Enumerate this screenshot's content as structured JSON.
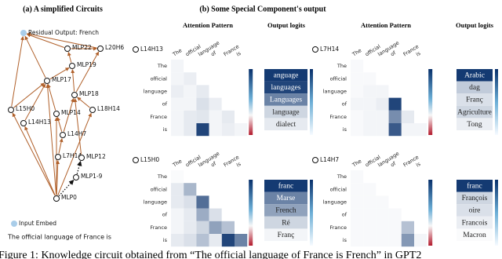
{
  "left": {
    "title": "(a) A simplified Circuits",
    "nodes": [
      {
        "label": "Residual Output: French"
      },
      {
        "label": "L20H6"
      },
      {
        "label": "MLP22"
      },
      {
        "label": "MLP19"
      },
      {
        "label": "MLP17"
      },
      {
        "label": "MLP18"
      },
      {
        "label": "L18H14"
      },
      {
        "label": "L15H0"
      },
      {
        "label": "L14H13"
      },
      {
        "label": "MLP14"
      },
      {
        "label": "L14H7"
      },
      {
        "label": "L7H14"
      },
      {
        "label": "MLP12"
      },
      {
        "label": "MLP1-9"
      },
      {
        "label": "MLP0"
      },
      {
        "label": "Input Embed"
      }
    ],
    "sentence": "The official language of France is"
  },
  "right": {
    "title": "(b) Some Special Component's output",
    "attention_header": "Attention Pattern",
    "logits_header": "Output logits",
    "tokens": [
      "The",
      "official",
      "language",
      "of",
      "France",
      "is"
    ],
    "colors": {
      "high": "#08306b",
      "low": "#ffffff",
      "negative": "#b2182b"
    },
    "panels": [
      {
        "name": "L14H13",
        "attention": [
          [
            0.05,
            0,
            0,
            0,
            0,
            0
          ],
          [
            0.05,
            0.08,
            0,
            0,
            0,
            0
          ],
          [
            0.08,
            0.05,
            0.1,
            0,
            0,
            0
          ],
          [
            0.05,
            0.05,
            0.15,
            0.08,
            0,
            0
          ],
          [
            0.05,
            0.1,
            0.12,
            0.05,
            0.1,
            0
          ],
          [
            0.05,
            0.1,
            0.9,
            0.05,
            0.08,
            0.05
          ]
        ],
        "logit_tokens": [
          "anguage",
          "languages",
          "Languages",
          "language",
          "dialect"
        ],
        "logit_values": [
          0.95,
          0.9,
          0.6,
          0.2,
          0.1
        ]
      },
      {
        "name": "L7H14",
        "attention": [
          [
            0.03,
            0,
            0,
            0,
            0,
            0
          ],
          [
            0.03,
            0.03,
            0,
            0,
            0,
            0
          ],
          [
            0.03,
            0.05,
            0.05,
            0,
            0,
            0
          ],
          [
            0.05,
            0.05,
            0.08,
            0.9,
            0,
            0
          ],
          [
            0.03,
            0.05,
            0.05,
            0.55,
            0.1,
            0
          ],
          [
            0.03,
            0.05,
            0.05,
            0.8,
            0.05,
            0.05
          ]
        ],
        "logit_tokens": [
          "Arabic",
          "dag",
          "Franç",
          "Agriculture",
          "Tong"
        ],
        "logit_values": [
          0.95,
          0.25,
          0.15,
          0.2,
          0.08
        ]
      },
      {
        "name": "L15H0",
        "attention": [
          [
            0.02,
            0,
            0,
            0,
            0,
            0
          ],
          [
            0.1,
            0.35,
            0,
            0,
            0,
            0
          ],
          [
            0.1,
            0.15,
            0.7,
            0,
            0,
            0
          ],
          [
            0.05,
            0.1,
            0.4,
            0.15,
            0,
            0
          ],
          [
            0.05,
            0.1,
            0.2,
            0.45,
            0.3,
            0
          ],
          [
            0.1,
            0.15,
            0.3,
            0.1,
            0.9,
            0.6
          ]
        ],
        "logit_tokens": [
          "franc",
          "Marse",
          "French",
          "Ré",
          "Franç"
        ],
        "logit_values": [
          0.95,
          0.6,
          0.45,
          0.2,
          0.05
        ]
      },
      {
        "name": "L14H7",
        "attention": [
          [
            0.03,
            0,
            0,
            0,
            0,
            0
          ],
          [
            0.03,
            0.03,
            0,
            0,
            0,
            0
          ],
          [
            0.03,
            0.03,
            0.03,
            0,
            0,
            0
          ],
          [
            0.03,
            0.03,
            0.03,
            0.03,
            0,
            0
          ],
          [
            0.03,
            0.03,
            0.03,
            0.03,
            0.3,
            0
          ],
          [
            0.03,
            0.03,
            0.03,
            0.03,
            0.5,
            0.05
          ]
        ],
        "logit_tokens": [
          "franc",
          "François",
          "oire",
          "Francois",
          "Macron"
        ],
        "logit_values": [
          0.95,
          0.2,
          0.15,
          0.08,
          0.02
        ]
      }
    ]
  },
  "caption": "Figure 1: Knowledge circuit obtained from “The official language of France is French” in GPT2"
}
